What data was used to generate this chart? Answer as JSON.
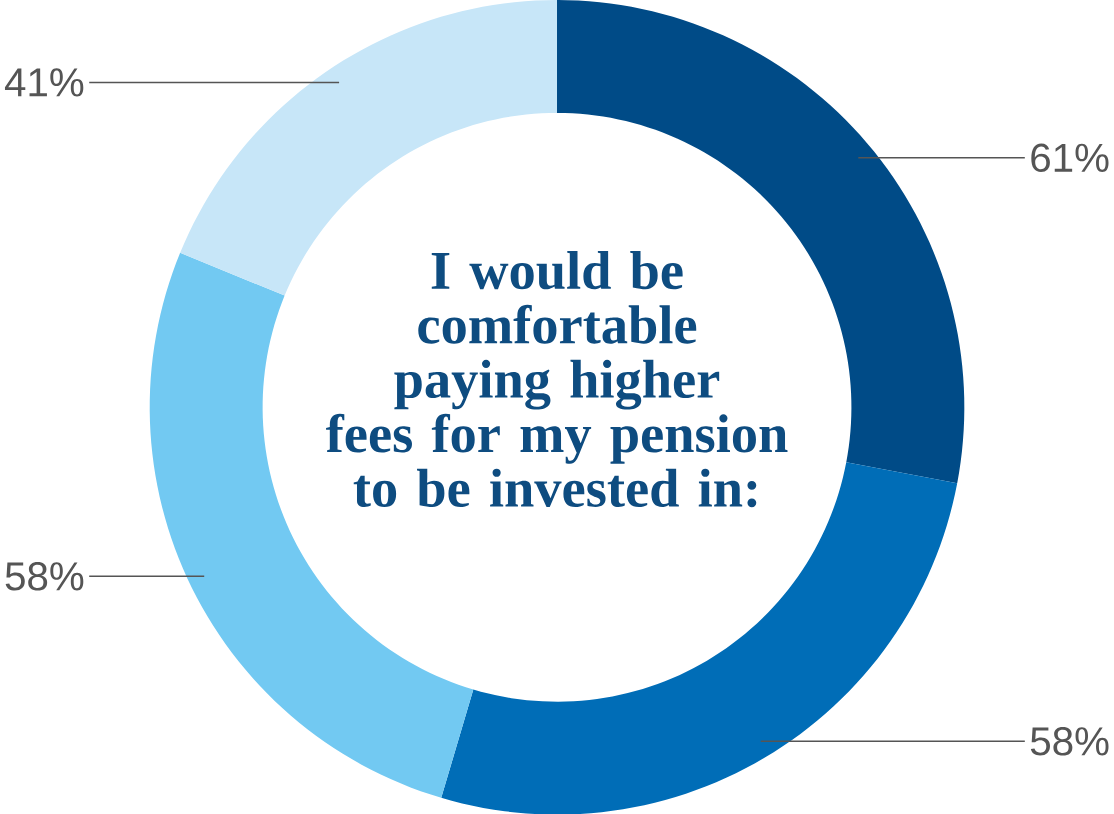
{
  "chart_data": {
    "type": "donut",
    "title": "I would be comfortable paying higher fees for my pension to be invested in:",
    "categories": [
      null,
      null,
      null,
      null
    ],
    "values": [
      61,
      58,
      58,
      41
    ],
    "colors": [
      "#004b87",
      "#006db7",
      "#72c9f2",
      "#c7e6f8"
    ],
    "value_labels": [
      "61%",
      "58%",
      "58%",
      "41%"
    ]
  }
}
